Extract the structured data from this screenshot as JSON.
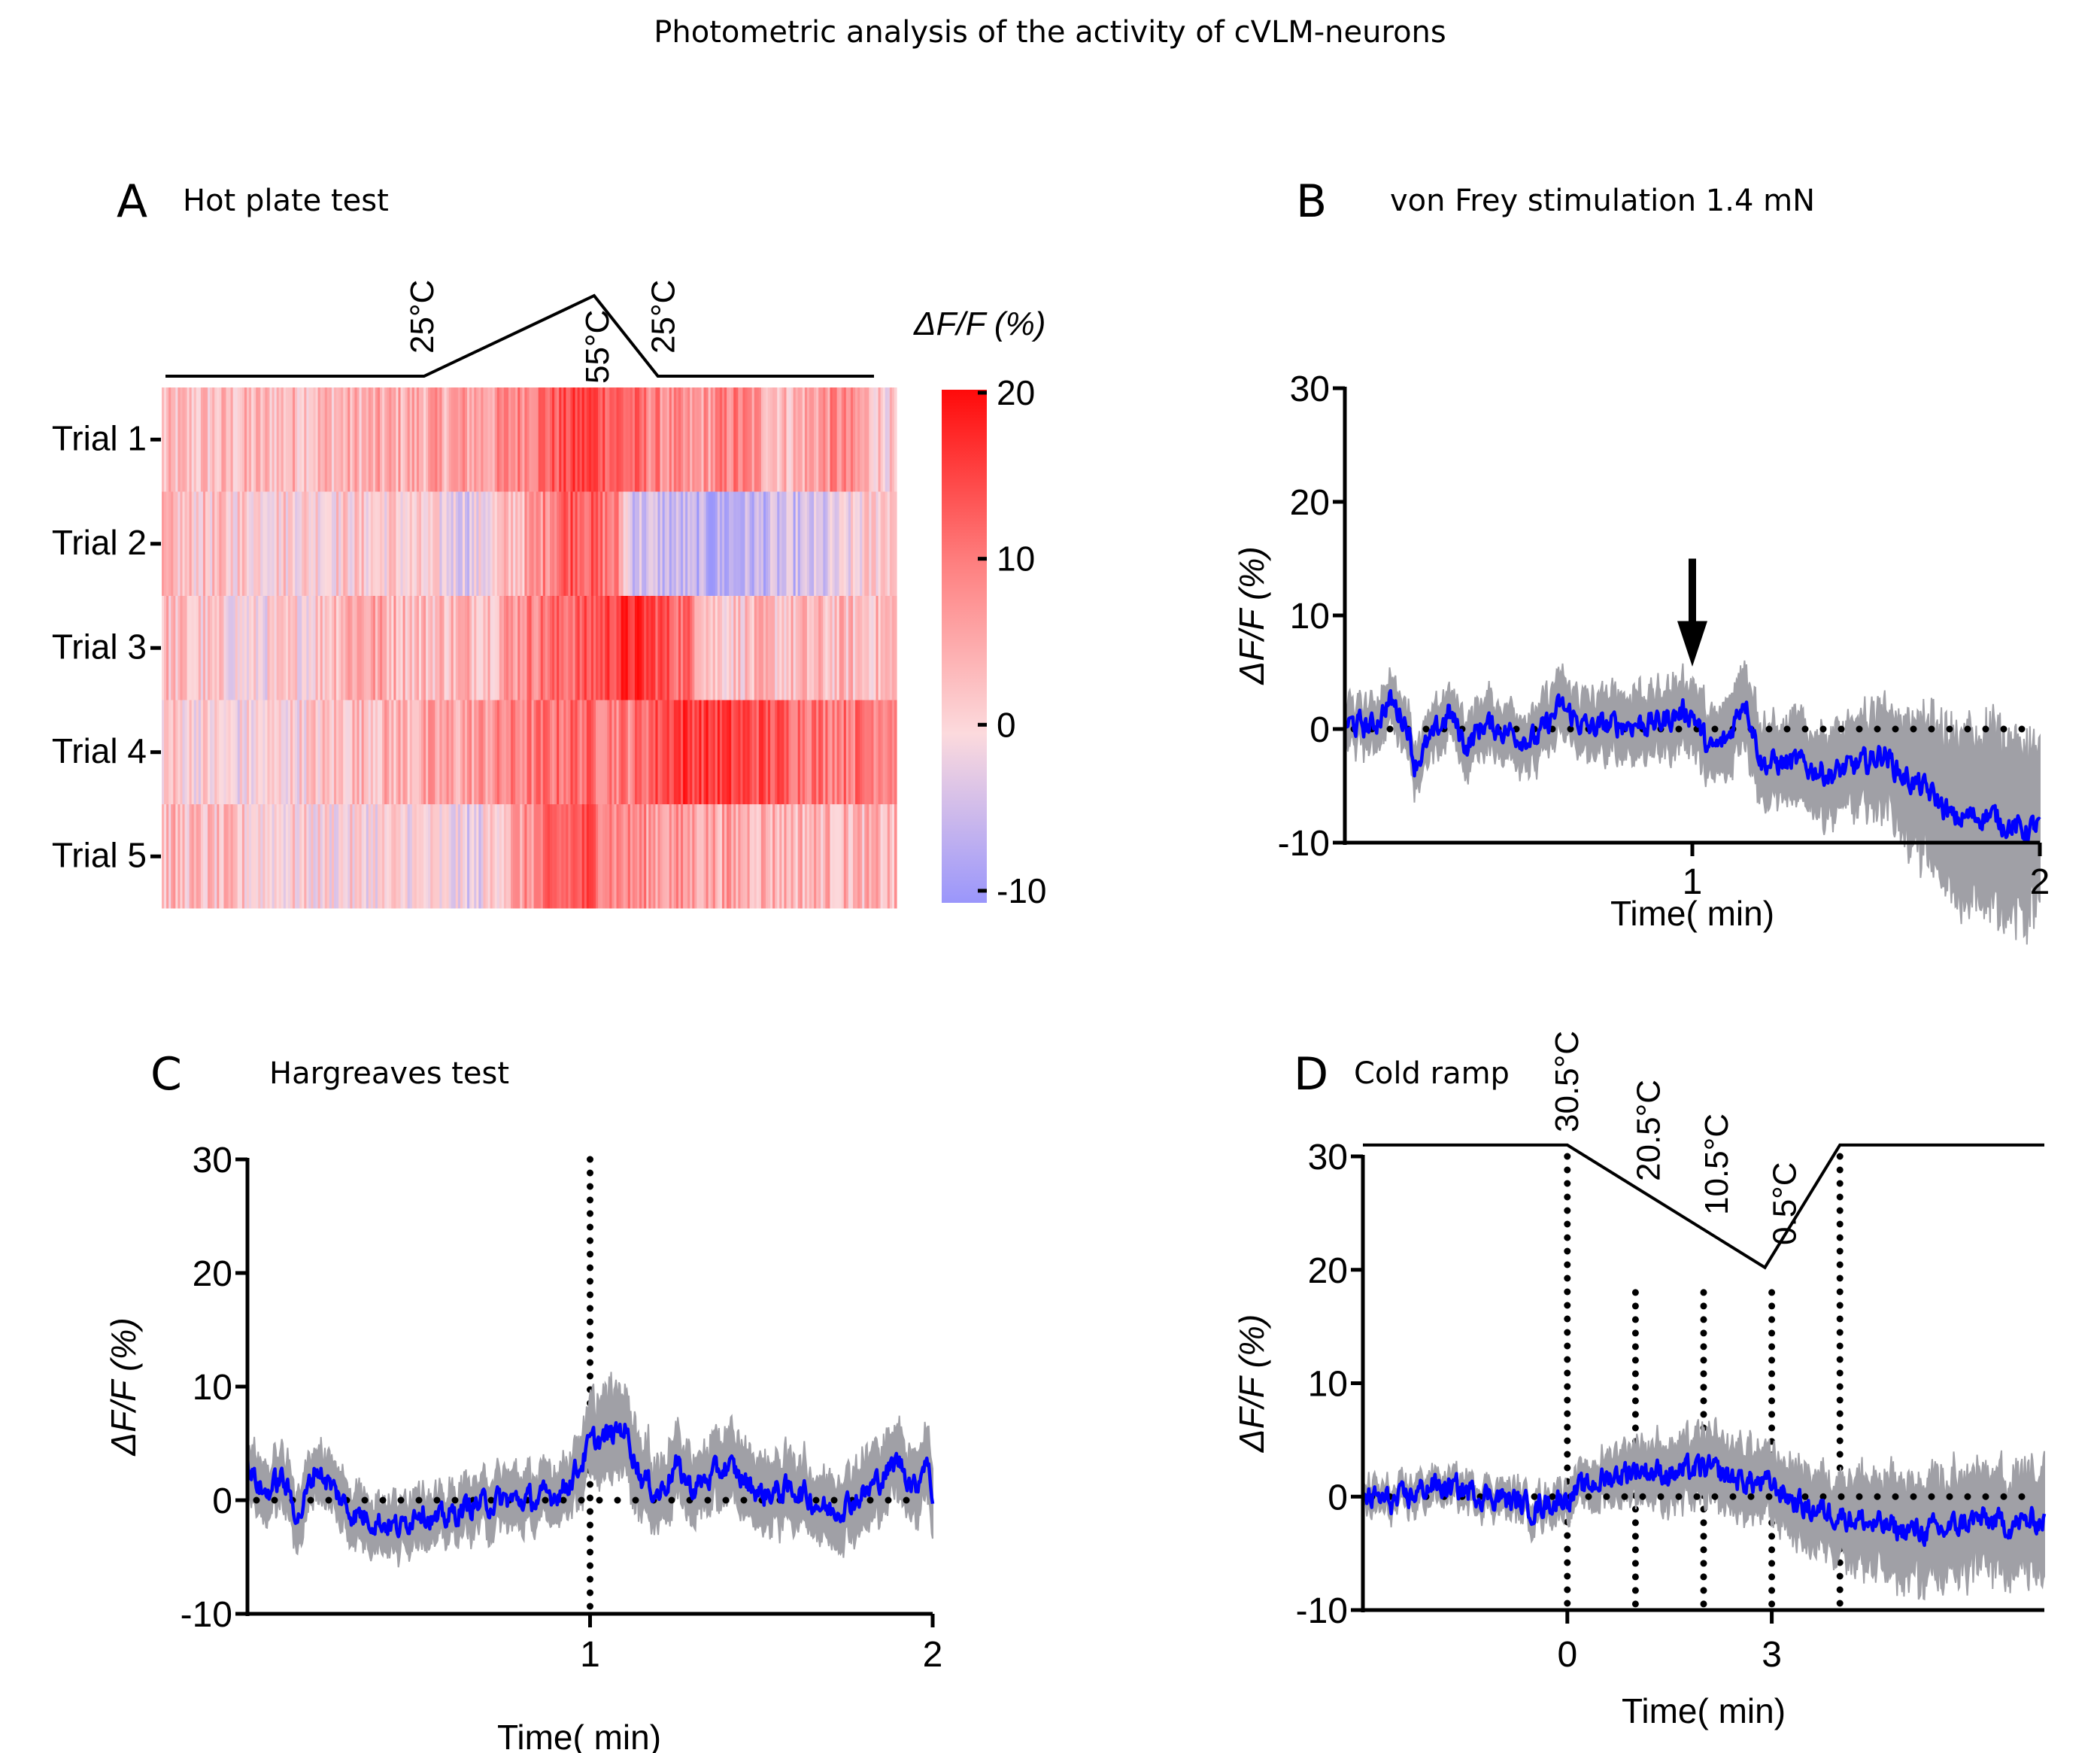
{
  "figure_title": "Photometric analysis of the activity of cVLM-neurons",
  "colors": {
    "mean_trace": "#0000ff",
    "sem_band": "#a0a0a6",
    "heat_high": "#ff0000",
    "heat_mid": "#fcd9dc",
    "heat_low": "#9a96fb",
    "axis": "#000000"
  },
  "chart_data": [
    {
      "panel": "A",
      "type": "heatmap",
      "title": "Hot plate test",
      "row_labels": [
        "Trial 1",
        "Trial 2",
        "Trial 3",
        "Trial 4",
        "Trial 5"
      ],
      "colorbar": {
        "label": "ΔF/F  (%)",
        "ticks": [
          "20",
          "10",
          "0",
          "-10"
        ],
        "range": [
          -11,
          20
        ]
      },
      "temperature_profile": {
        "labels": [
          "25°C",
          "55°C",
          "25°C"
        ],
        "points": [
          [
            0,
            25
          ],
          [
            0.365,
            25
          ],
          [
            0.605,
            55
          ],
          [
            0.695,
            25
          ],
          [
            1,
            25
          ]
        ]
      },
      "row_profiles": [
        [
          [
            0,
            2
          ],
          [
            0.15,
            3
          ],
          [
            0.3,
            4
          ],
          [
            0.45,
            6
          ],
          [
            0.52,
            11
          ],
          [
            0.58,
            15
          ],
          [
            0.65,
            10
          ],
          [
            0.72,
            5
          ],
          [
            0.78,
            9
          ],
          [
            0.85,
            3
          ],
          [
            0.92,
            8
          ],
          [
            1,
            0
          ]
        ],
        [
          [
            0,
            2
          ],
          [
            0.2,
            1
          ],
          [
            0.32,
            1
          ],
          [
            0.42,
            -3
          ],
          [
            0.5,
            5
          ],
          [
            0.56,
            14
          ],
          [
            0.62,
            8
          ],
          [
            0.64,
            -4
          ],
          [
            0.75,
            -8
          ],
          [
            0.82,
            -6
          ],
          [
            0.9,
            -5
          ],
          [
            1,
            4
          ]
        ],
        [
          [
            0,
            3
          ],
          [
            0.12,
            -1
          ],
          [
            0.2,
            1
          ],
          [
            0.26,
            6
          ],
          [
            0.35,
            3
          ],
          [
            0.45,
            4
          ],
          [
            0.5,
            9
          ],
          [
            0.58,
            12
          ],
          [
            0.64,
            17
          ],
          [
            0.72,
            10
          ],
          [
            0.75,
            2
          ],
          [
            1,
            3
          ]
        ],
        [
          [
            0,
            2
          ],
          [
            0.1,
            -1
          ],
          [
            0.2,
            1
          ],
          [
            0.26,
            3
          ],
          [
            0.4,
            5
          ],
          [
            0.48,
            8
          ],
          [
            0.56,
            11
          ],
          [
            0.64,
            9
          ],
          [
            0.7,
            16
          ],
          [
            0.8,
            14
          ],
          [
            0.9,
            10
          ],
          [
            1,
            10
          ]
        ],
        [
          [
            0,
            3
          ],
          [
            0.2,
            0
          ],
          [
            0.35,
            0
          ],
          [
            0.43,
            -3
          ],
          [
            0.45,
            2
          ],
          [
            0.53,
            10
          ],
          [
            0.58,
            13
          ],
          [
            0.62,
            8
          ],
          [
            0.7,
            6
          ],
          [
            0.85,
            4
          ],
          [
            1,
            3
          ]
        ]
      ]
    },
    {
      "panel": "B",
      "type": "line",
      "title": "von Frey stimulation 1.4 mN",
      "xlabel": "Time( min)",
      "ylabel": "ΔF/F  (%)",
      "ylim": [
        -10,
        30
      ],
      "xlim": [
        0,
        2
      ],
      "yticks": [
        "30",
        "20",
        "10",
        "0",
        "-10"
      ],
      "xticks": [
        {
          "value": 1,
          "label": "1"
        },
        {
          "value": 2,
          "label": "2"
        }
      ],
      "zero_line": true,
      "annotation": {
        "type": "arrow",
        "x": 1,
        "label": "stimulus"
      },
      "mean": [
        [
          0,
          0.5
        ],
        [
          0.08,
          0.2
        ],
        [
          0.13,
          2.5
        ],
        [
          0.18,
          0.5
        ],
        [
          0.2,
          -3
        ],
        [
          0.25,
          -1
        ],
        [
          0.3,
          1.5
        ],
        [
          0.35,
          -1.5
        ],
        [
          0.4,
          0.5
        ],
        [
          0.5,
          -0.5
        ],
        [
          0.55,
          -1
        ],
        [
          0.62,
          2
        ],
        [
          0.7,
          0
        ],
        [
          0.8,
          0.5
        ],
        [
          0.9,
          0.5
        ],
        [
          0.97,
          1.5
        ],
        [
          1.0,
          1.5
        ],
        [
          1.05,
          -2
        ],
        [
          1.1,
          -1
        ],
        [
          1.15,
          3
        ],
        [
          1.2,
          -3
        ],
        [
          1.3,
          -3
        ],
        [
          1.4,
          -4
        ],
        [
          1.5,
          -3
        ],
        [
          1.55,
          -2
        ],
        [
          1.6,
          -4
        ],
        [
          1.7,
          -6
        ],
        [
          1.75,
          -8
        ],
        [
          1.85,
          -7.5
        ],
        [
          1.95,
          -9
        ],
        [
          2,
          -8.5
        ]
      ],
      "sem_halfwidth": [
        [
          0,
          1.5
        ],
        [
          0.5,
          2
        ],
        [
          1.0,
          2.5
        ],
        [
          1.3,
          3
        ],
        [
          1.5,
          3.5
        ],
        [
          1.6,
          4.5
        ],
        [
          1.7,
          6
        ],
        [
          1.8,
          7
        ],
        [
          2,
          7
        ]
      ]
    },
    {
      "panel": "C",
      "type": "line",
      "title": "Hargreaves test",
      "xlabel": "Time( min)",
      "ylabel": "ΔF/F  (%)",
      "ylim": [
        -10,
        30
      ],
      "xlim": [
        0,
        2
      ],
      "yticks": [
        "30",
        "20",
        "10",
        "0",
        "-10"
      ],
      "xticks": [
        {
          "value": 1,
          "label": "1"
        },
        {
          "value": 2,
          "label": "2"
        }
      ],
      "zero_line": true,
      "vertical_markers": [
        {
          "x": 1,
          "ymax": 30
        }
      ],
      "mean": [
        [
          0,
          3
        ],
        [
          0.05,
          0.5
        ],
        [
          0.1,
          2
        ],
        [
          0.15,
          -1.5
        ],
        [
          0.2,
          3
        ],
        [
          0.25,
          1
        ],
        [
          0.3,
          -1
        ],
        [
          0.4,
          -2
        ],
        [
          0.45,
          -2.5
        ],
        [
          0.5,
          -0.5
        ],
        [
          0.55,
          -2
        ],
        [
          0.65,
          -0.5
        ],
        [
          0.75,
          0
        ],
        [
          0.85,
          0
        ],
        [
          0.92,
          1
        ],
        [
          0.97,
          3
        ],
        [
          1.0,
          5
        ],
        [
          1.05,
          5.5
        ],
        [
          1.1,
          6.5
        ],
        [
          1.15,
          2
        ],
        [
          1.2,
          0.5
        ],
        [
          1.25,
          3
        ],
        [
          1.3,
          1
        ],
        [
          1.4,
          3
        ],
        [
          1.5,
          0.5
        ],
        [
          1.6,
          1
        ],
        [
          1.7,
          -1
        ],
        [
          1.8,
          0.5
        ],
        [
          1.9,
          3.5
        ],
        [
          1.95,
          1
        ],
        [
          1.98,
          4
        ],
        [
          2,
          0.5
        ]
      ],
      "sem_halfwidth": [
        [
          0,
          2
        ],
        [
          0.5,
          1.8
        ],
        [
          0.95,
          2
        ],
        [
          1.05,
          3.5
        ],
        [
          1.2,
          2.5
        ],
        [
          2,
          2.5
        ]
      ]
    },
    {
      "panel": "D",
      "type": "line",
      "title": "Cold ramp",
      "xlabel": "Time( min)",
      "ylabel": "ΔF/F  (%)",
      "ylim": [
        -10,
        30
      ],
      "xlim": [
        -3,
        7
      ],
      "yticks": [
        "30",
        "20",
        "10",
        "0",
        "-10"
      ],
      "xticks": [
        {
          "value": 0,
          "label": "0"
        },
        {
          "value": 3,
          "label": "3"
        }
      ],
      "zero_line": true,
      "vertical_markers": [
        {
          "x": 0,
          "ymax": 30
        },
        {
          "x": 1,
          "ymax": 18
        },
        {
          "x": 2,
          "ymax": 18
        },
        {
          "x": 3,
          "ymax": 18
        },
        {
          "x": 4,
          "ymax": 30
        }
      ],
      "temperature_profile": {
        "labels": [
          "30.5°C",
          "20.5°C",
          "10.5°C",
          "0.5°C"
        ],
        "label_x": [
          0,
          1,
          2,
          3
        ],
        "points": [
          [
            -3,
            31
          ],
          [
            0,
            31
          ],
          [
            2.9,
            20.2
          ],
          [
            4,
            31
          ],
          [
            7,
            31
          ]
        ]
      },
      "mean": [
        [
          -3,
          0
        ],
        [
          -2.5,
          -0.5
        ],
        [
          -2,
          1
        ],
        [
          -1.5,
          0.5
        ],
        [
          -1,
          0
        ],
        [
          -0.5,
          -1
        ],
        [
          0,
          0
        ],
        [
          0.5,
          1.5
        ],
        [
          1,
          2.5
        ],
        [
          1.5,
          2
        ],
        [
          2,
          2.5
        ],
        [
          2.5,
          1.5
        ],
        [
          3,
          1
        ],
        [
          3.5,
          -1
        ],
        [
          4,
          -1.5
        ],
        [
          4.5,
          -2.5
        ],
        [
          5,
          -3
        ],
        [
          5.5,
          -3
        ],
        [
          6,
          -2
        ],
        [
          6.5,
          -2.5
        ],
        [
          7,
          -2
        ]
      ],
      "sem_halfwidth": [
        [
          -3,
          0.8
        ],
        [
          -1,
          0.8
        ],
        [
          0,
          1
        ],
        [
          1,
          2
        ],
        [
          2,
          2.5
        ],
        [
          3,
          2.5
        ],
        [
          3.5,
          2.8
        ],
        [
          4,
          3
        ],
        [
          4.5,
          3.5
        ],
        [
          5,
          4
        ],
        [
          7,
          4
        ]
      ]
    }
  ]
}
